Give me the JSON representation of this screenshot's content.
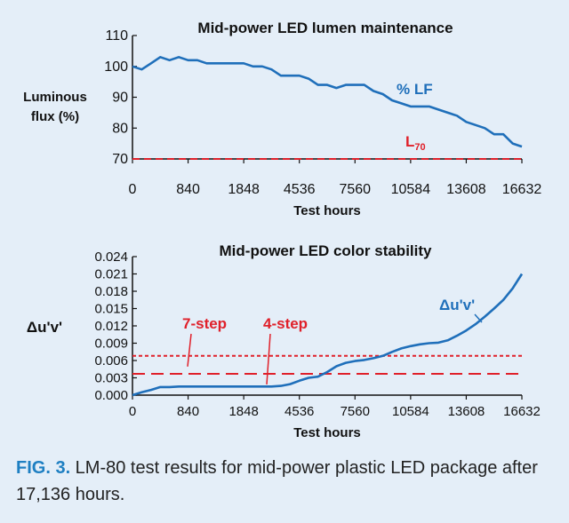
{
  "chart_data": [
    {
      "type": "line",
      "title": "Mid-power LED lumen maintenance",
      "xlabel": "Test hours",
      "ylabel": [
        "Luminous",
        "flux (%)"
      ],
      "x_ticks": [
        "0",
        "840",
        "1848",
        "4536",
        "7560",
        "10584",
        "13608",
        "16632"
      ],
      "ylim": [
        70,
        110
      ],
      "y_ticks": [
        "70",
        "80",
        "90",
        "100",
        "110"
      ],
      "series": [
        {
          "name": "% LF",
          "color": "#1f6fba",
          "values": [
            100,
            99,
            101,
            103,
            102,
            103,
            102,
            102,
            101,
            101,
            101,
            101,
            101,
            100,
            100,
            99,
            97,
            97,
            97,
            96,
            94,
            94,
            93,
            94,
            94,
            94,
            92,
            91,
            89,
            88,
            87,
            87,
            87,
            86,
            85,
            84,
            82,
            81,
            80,
            78,
            78,
            75,
            74
          ]
        }
      ],
      "reference_lines": [
        {
          "label": "L",
          "label_sub": "70",
          "value": 70,
          "style": "dashed",
          "color": "#e0202a"
        }
      ]
    },
    {
      "type": "line",
      "title": "Mid-power LED color stability",
      "xlabel": "Test hours",
      "ylabel": "Δu'v'",
      "x_ticks": [
        "0",
        "840",
        "1848",
        "4536",
        "7560",
        "10584",
        "13608",
        "16632"
      ],
      "ylim": [
        0,
        0.024
      ],
      "y_ticks": [
        "0.000",
        "0.003",
        "0.006",
        "0.009",
        "0.012",
        "0.015",
        "0.018",
        "0.021",
        "0.024"
      ],
      "series": [
        {
          "name": "Δu'v'",
          "color": "#1f6fba",
          "values": [
            0.0,
            0.0005,
            0.0009,
            0.0014,
            0.0014,
            0.0015,
            0.0015,
            0.0015,
            0.0015,
            0.0015,
            0.0015,
            0.0015,
            0.0015,
            0.0015,
            0.0015,
            0.0015,
            0.0016,
            0.0019,
            0.0025,
            0.003,
            0.0032,
            0.004,
            0.005,
            0.0056,
            0.0059,
            0.0061,
            0.0064,
            0.0068,
            0.0075,
            0.0081,
            0.0085,
            0.0088,
            0.009,
            0.0091,
            0.0095,
            0.0103,
            0.0112,
            0.0123,
            0.0136,
            0.015,
            0.0165,
            0.0185,
            0.021
          ]
        }
      ],
      "reference_lines": [
        {
          "label": "7-step",
          "value": 0.0068,
          "style": "dotted",
          "color": "#e0202a"
        },
        {
          "label": "4-step",
          "value": 0.0037,
          "style": "dashed",
          "color": "#e0202a"
        }
      ]
    }
  ],
  "caption": {
    "label": "FIG. 3.",
    "text": " LM-80 test results for mid-power plastic LED package after 17,136 hours."
  }
}
